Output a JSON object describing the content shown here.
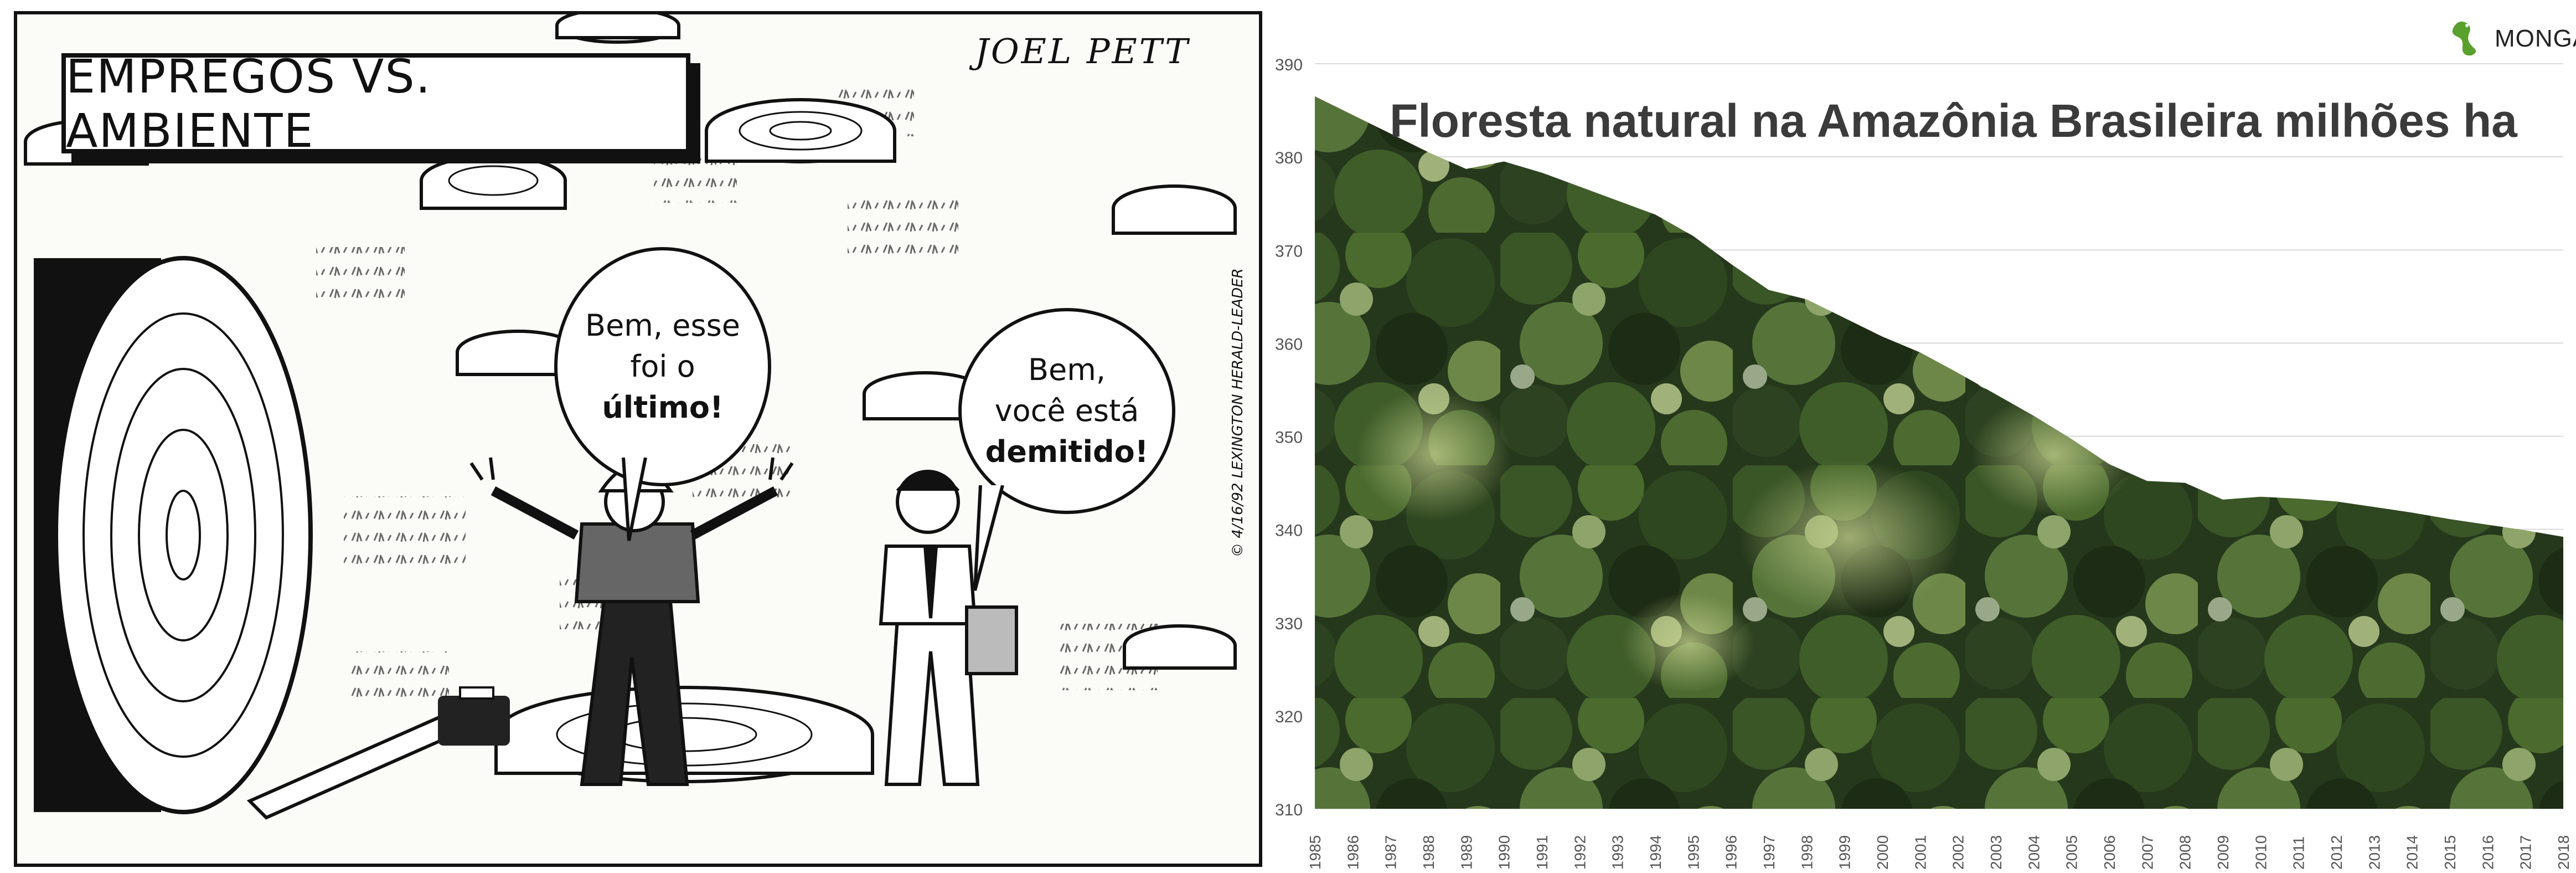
{
  "cartoon": {
    "title": "EMPREGOS VS. AMBIENTE",
    "signature": "JOEL PETT",
    "copyright": "© 4/16/92 LEXINGTON HERALD-LEADER",
    "worker_bubble": [
      "Bem, esse",
      "foi o",
      "último!"
    ],
    "boss_bubble": [
      "Bem,",
      "você está",
      "demitido!"
    ]
  },
  "brand": {
    "name": "MONGABAY.COM",
    "icon": "lizard-logo-icon",
    "color": "#5aa02c"
  },
  "chart_data": {
    "type": "area",
    "title": "Floresta natural na Amazônia Brasileira milhões ha",
    "xlabel": "",
    "ylabel": "",
    "x": [
      "1985",
      "1986",
      "1987",
      "1988",
      "1989",
      "1990",
      "1991",
      "1992",
      "1993",
      "1994",
      "1995",
      "1996",
      "1997",
      "1998",
      "1999",
      "2000",
      "2001",
      "2002",
      "2003",
      "2004",
      "2005",
      "2006",
      "2007",
      "2008",
      "2009",
      "2010",
      "2011",
      "2012",
      "2013",
      "2014",
      "2015",
      "2016",
      "2017",
      "2018"
    ],
    "series": [
      {
        "values": [
          386.5,
          384.5,
          382.5,
          380.5,
          378.7,
          379.5,
          378.3,
          376.8,
          375.3,
          373.8,
          371.5,
          368.5,
          365.7,
          364.7,
          362.7,
          360.7,
          359.0,
          356.8,
          354.5,
          352.2,
          349.7,
          347.0,
          345.2,
          345.0,
          343.2,
          343.5,
          343.3,
          343.0,
          342.4,
          341.8,
          341.1,
          340.5,
          339.9,
          339.2
        ]
      }
    ],
    "ylim": [
      310,
      390
    ],
    "yticks": [
      "390",
      "380",
      "370",
      "360",
      "350",
      "340",
      "330",
      "320",
      "310"
    ],
    "grid": true,
    "fill": "aerial photo of Amazon rainforest canopy",
    "colors": {
      "canopy_dark": "#1f2d16",
      "canopy_mid": "#3c5a26",
      "canopy_light": "#8fa668",
      "grid": "#d9d9d9",
      "tick": "#555555"
    }
  }
}
